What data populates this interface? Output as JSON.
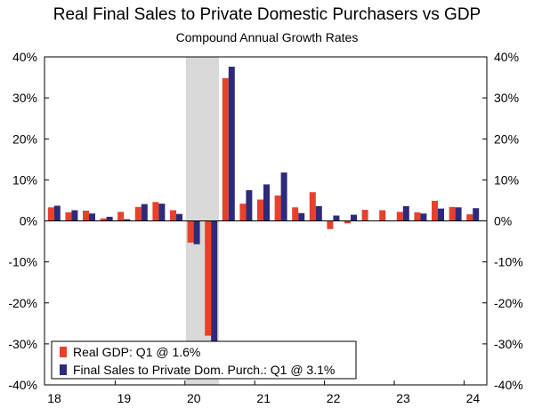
{
  "chart_data": {
    "type": "bar",
    "title": "Real Final Sales to Private Domestic Purchasers vs GDP",
    "subtitle": "Compound Annual Growth Rates",
    "xlabel": "",
    "ylabel": "",
    "ylim": [
      -40,
      40
    ],
    "y_ticks": [
      40,
      30,
      20,
      10,
      0,
      -10,
      -20,
      -30,
      -40
    ],
    "y_tick_labels": [
      "40%",
      "30%",
      "20%",
      "10%",
      "0%",
      "-10%",
      "-20%",
      "-30%",
      "-40%"
    ],
    "x_tick_labels": [
      "18",
      "19",
      "20",
      "21",
      "22",
      "23",
      "24"
    ],
    "categories": [
      "2018Q1",
      "2018Q2",
      "2018Q3",
      "2018Q4",
      "2019Q1",
      "2019Q2",
      "2019Q3",
      "2019Q4",
      "2020Q1",
      "2020Q2",
      "2020Q3",
      "2020Q4",
      "2021Q1",
      "2021Q2",
      "2021Q3",
      "2021Q4",
      "2022Q1",
      "2022Q2",
      "2022Q3",
      "2022Q4",
      "2023Q1",
      "2023Q2",
      "2023Q3",
      "2023Q4",
      "2024Q1"
    ],
    "recession_shading": [
      "2020Q1",
      "2020Q2"
    ],
    "grid": false,
    "legend_position": "bottom-left",
    "series": [
      {
        "name": "Real GDP: Q1 @ 1.6%",
        "color": "#e8412b",
        "values": [
          3.3,
          2.1,
          2.5,
          0.6,
          2.2,
          3.4,
          4.6,
          2.6,
          -5.3,
          -28.0,
          34.8,
          4.2,
          5.2,
          6.2,
          3.3,
          7.0,
          -2.0,
          -0.6,
          2.7,
          2.6,
          2.2,
          2.1,
          4.9,
          3.4,
          1.6
        ]
      },
      {
        "name": "Final Sales to Private Dom. Purch.: Q1 @ 3.1%",
        "color": "#2e2a7a",
        "values": [
          3.7,
          2.6,
          1.8,
          1.0,
          0.4,
          4.1,
          4.2,
          1.7,
          -5.7,
          -29.5,
          37.6,
          7.5,
          8.9,
          11.8,
          1.9,
          3.6,
          1.3,
          1.5,
          0.0,
          0.0,
          3.6,
          1.8,
          3.0,
          3.3,
          3.1
        ]
      }
    ]
  }
}
